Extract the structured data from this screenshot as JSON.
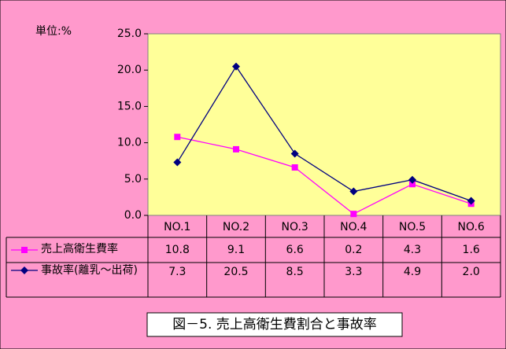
{
  "chart_data": {
    "type": "line",
    "unit_label": "単位:%",
    "caption": "図－5. 売上高衛生費割合と事故率",
    "categories": [
      "NO.1",
      "NO.2",
      "NO.3",
      "NO.4",
      "NO.5",
      "NO.6"
    ],
    "series": [
      {
        "name": "売上高衛生費率",
        "color": "#ff00ff",
        "marker": "square",
        "values": [
          10.8,
          9.1,
          6.6,
          0.2,
          4.3,
          1.6
        ]
      },
      {
        "name": "事故率(離乳～出荷)",
        "color": "#000080",
        "marker": "diamond",
        "values": [
          7.3,
          20.5,
          8.5,
          3.3,
          4.9,
          2.0
        ],
        "value_labels": [
          "7.3",
          "20.5",
          "8.5",
          "3.3",
          "4.9",
          "2.0"
        ]
      }
    ],
    "ylim": [
      0,
      25
    ],
    "yticks": [
      {
        "value": 0,
        "label": "0.0"
      },
      {
        "value": 5,
        "label": "5.0"
      },
      {
        "value": 10,
        "label": "10.0"
      },
      {
        "value": 15,
        "label": "15.0"
      },
      {
        "value": 20,
        "label": "20.0"
      },
      {
        "value": 25,
        "label": "25.0"
      }
    ]
  }
}
